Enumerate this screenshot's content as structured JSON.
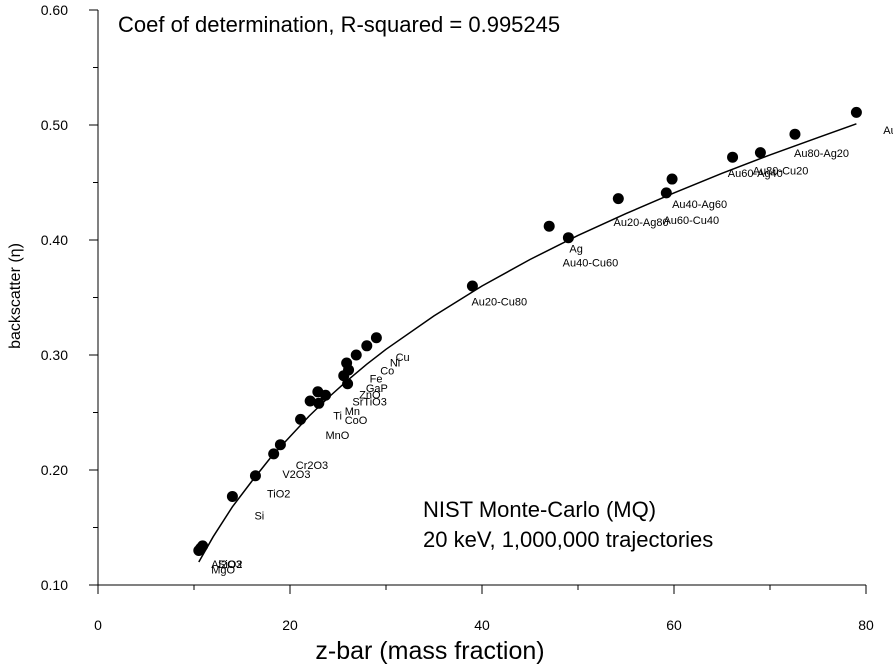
{
  "chart_data": {
    "type": "scatter",
    "xlabel": "z-bar (mass fraction)",
    "ylabel": "backscatter (η)",
    "xlim": [
      0,
      80
    ],
    "ylim": [
      0.1,
      0.6
    ],
    "x_ticks": [
      {
        "value": 0,
        "label": "0"
      },
      {
        "value": 20,
        "label": "20"
      },
      {
        "value": 40,
        "label": "40"
      },
      {
        "value": 60,
        "label": "60"
      },
      {
        "value": 80,
        "label": "80"
      }
    ],
    "y_ticks": [
      {
        "value": 0.1,
        "label": "0.10"
      },
      {
        "value": 0.2,
        "label": "0.20"
      },
      {
        "value": 0.3,
        "label": "0.30"
      },
      {
        "value": 0.4,
        "label": "0.40"
      },
      {
        "value": 0.5,
        "label": "0.50"
      },
      {
        "value": 0.6,
        "label": "0.60"
      }
    ],
    "annotations": {
      "r_squared": "Coef of determination, R-squared = 0.995245",
      "source_line1": "NIST Monte-Carlo (MQ)",
      "source_line2": "20 keV, 1,000,000 trajectories"
    },
    "points": [
      {
        "x": 10.5,
        "y": 0.13
      },
      {
        "x": 10.7,
        "y": 0.132
      },
      {
        "x": 10.9,
        "y": 0.134
      },
      {
        "x": 14.0,
        "y": 0.177
      },
      {
        "x": 16.4,
        "y": 0.195
      },
      {
        "x": 18.3,
        "y": 0.214
      },
      {
        "x": 19.0,
        "y": 0.222
      },
      {
        "x": 21.1,
        "y": 0.244
      },
      {
        "x": 22.1,
        "y": 0.26
      },
      {
        "x": 22.9,
        "y": 0.268
      },
      {
        "x": 23.0,
        "y": 0.258
      },
      {
        "x": 23.7,
        "y": 0.265
      },
      {
        "x": 25.6,
        "y": 0.282
      },
      {
        "x": 25.9,
        "y": 0.293
      },
      {
        "x": 26.0,
        "y": 0.275
      },
      {
        "x": 26.1,
        "y": 0.287
      },
      {
        "x": 26.9,
        "y": 0.3
      },
      {
        "x": 28.0,
        "y": 0.308
      },
      {
        "x": 29.0,
        "y": 0.315
      },
      {
        "x": 39.0,
        "y": 0.36
      },
      {
        "x": 47.0,
        "y": 0.412
      },
      {
        "x": 49.0,
        "y": 0.402
      },
      {
        "x": 54.2,
        "y": 0.436
      },
      {
        "x": 59.2,
        "y": 0.441
      },
      {
        "x": 59.8,
        "y": 0.453
      },
      {
        "x": 66.1,
        "y": 0.472
      },
      {
        "x": 69.0,
        "y": 0.476
      },
      {
        "x": 72.6,
        "y": 0.492
      },
      {
        "x": 79.0,
        "y": 0.511
      }
    ],
    "point_labels": [
      {
        "text": "Au",
        "x": 81.8,
        "y": 0.492
      },
      {
        "text": "Au80-Ag20",
        "x": 72.5,
        "y": 0.472
      },
      {
        "text": "Au80-Cu20",
        "x": 68.2,
        "y": 0.457
      },
      {
        "text": "Au60-Ag40",
        "x": 65.6,
        "y": 0.455
      },
      {
        "text": "Au40-Ag60",
        "x": 59.8,
        "y": 0.428
      },
      {
        "text": "Au60-Cu40",
        "x": 58.9,
        "y": 0.414
      },
      {
        "text": "Au20-Ag80",
        "x": 53.7,
        "y": 0.412
      },
      {
        "text": "Ag",
        "x": 49.1,
        "y": 0.389
      },
      {
        "text": "Au40-Cu60",
        "x": 48.4,
        "y": 0.377
      },
      {
        "text": "Au20-Cu80",
        "x": 38.9,
        "y": 0.343
      },
      {
        "text": "Cu",
        "x": 31.0,
        "y": 0.295
      },
      {
        "text": "Ni",
        "x": 30.4,
        "y": 0.29
      },
      {
        "text": "Co",
        "x": 29.4,
        "y": 0.283
      },
      {
        "text": "Fe",
        "x": 28.3,
        "y": 0.276
      },
      {
        "text": "GaP",
        "x": 27.9,
        "y": 0.268
      },
      {
        "text": "ZnO",
        "x": 27.2,
        "y": 0.262
      },
      {
        "text": "SrTiO3",
        "x": 26.5,
        "y": 0.256
      },
      {
        "text": "Mn",
        "x": 25.7,
        "y": 0.248
      },
      {
        "text": "Ti",
        "x": 24.5,
        "y": 0.244
      },
      {
        "text": "CoO",
        "x": 25.7,
        "y": 0.24
      },
      {
        "text": "MnO",
        "x": 23.7,
        "y": 0.227
      },
      {
        "text": "Cr2O3",
        "x": 20.6,
        "y": 0.201
      },
      {
        "text": "V2O3",
        "x": 19.2,
        "y": 0.193
      },
      {
        "text": "TiO2",
        "x": 17.6,
        "y": 0.176
      },
      {
        "text": "Si",
        "x": 16.3,
        "y": 0.157
      },
      {
        "text": "Al2O3",
        "x": 11.8,
        "y": 0.115
      },
      {
        "text": "SiO2",
        "x": 12.5,
        "y": 0.115
      },
      {
        "text": "MgO",
        "x": 11.8,
        "y": 0.11
      }
    ]
  }
}
